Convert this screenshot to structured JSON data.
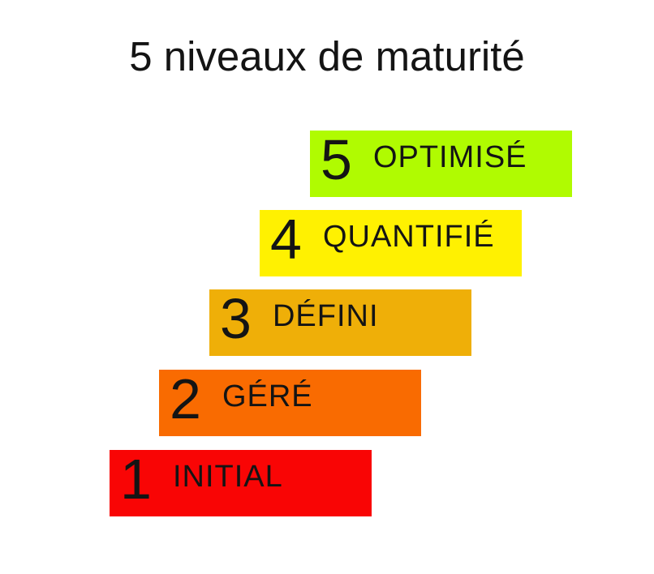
{
  "title": "5 niveaux de maturité",
  "text_color": "#141414",
  "background_color": "#FFFFFF",
  "chart_data": {
    "type": "bar",
    "title": "5 niveaux de maturité",
    "layout": "staircase-ascending-right",
    "levels": [
      {
        "number": "1",
        "label": "INITIAL",
        "color": "#F90505"
      },
      {
        "number": "2",
        "label": "GÉRÉ",
        "color": "#F96B01"
      },
      {
        "number": "3",
        "label": "DÉFINI",
        "color": "#EFAF08"
      },
      {
        "number": "4",
        "label": "QUANTIFIÉ",
        "color": "#FFF101"
      },
      {
        "number": "5",
        "label": "OPTIMISÉ",
        "color": "#B0FB01"
      }
    ]
  }
}
